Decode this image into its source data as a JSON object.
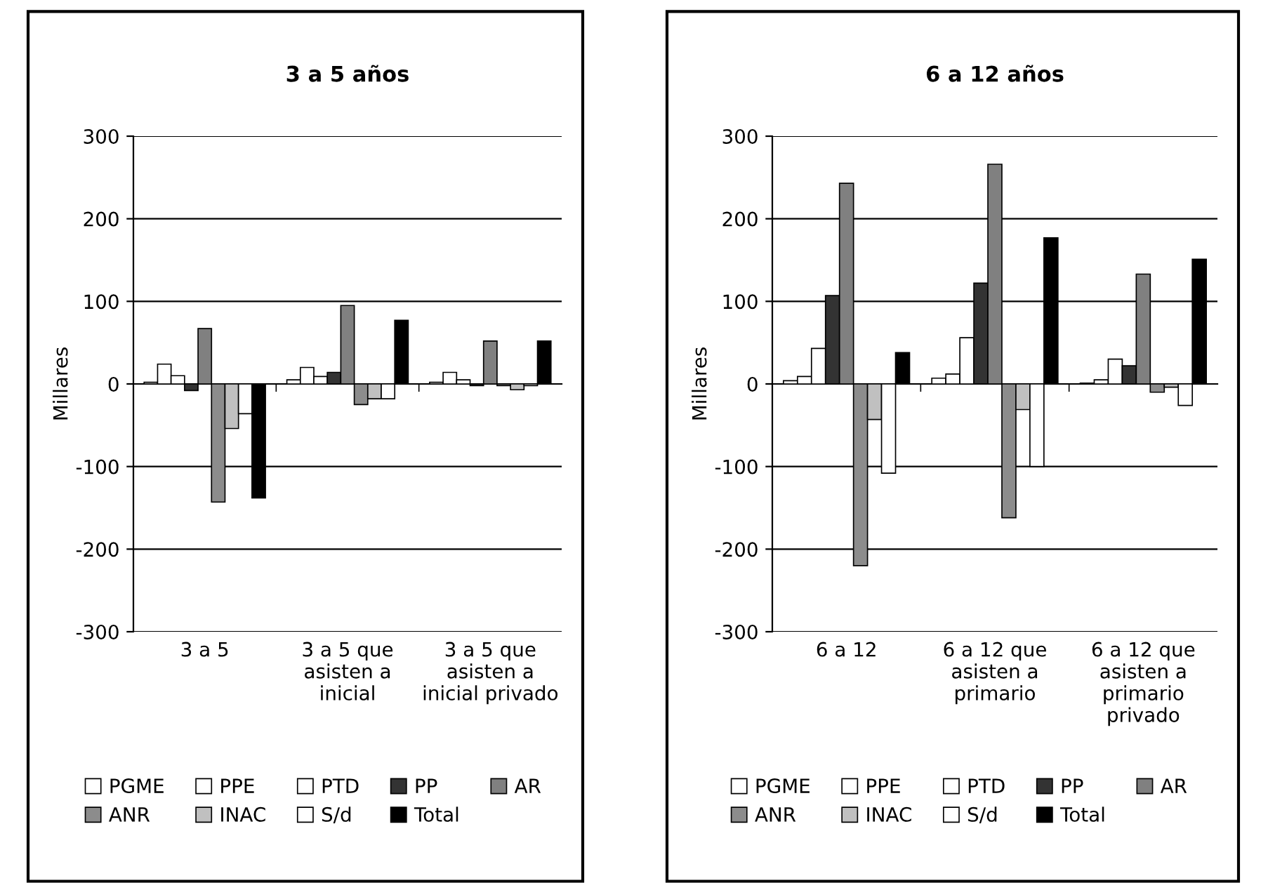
{
  "chart_data": [
    {
      "type": "bar",
      "title": "3 a 5 años",
      "ylabel": "Millares",
      "categories": [
        "3 a 5",
        "3 a 5 que\nasisten a\ninicial",
        "3 a 5 que\nasisten a\ninicial privado"
      ],
      "ylim": [
        -300,
        300
      ],
      "yticks": [
        -300,
        -200,
        -100,
        0,
        100,
        200,
        300
      ],
      "grid": "y",
      "legend": "bottom",
      "series": [
        {
          "name": "PGME",
          "color": "#ffffff",
          "values": [
            2,
            5,
            2
          ]
        },
        {
          "name": "PPE",
          "color": "#ffffff",
          "values": [
            24,
            20,
            14
          ]
        },
        {
          "name": "PTD",
          "color": "#ffffff",
          "values": [
            10,
            9,
            5
          ]
        },
        {
          "name": "PP",
          "color": "#333333",
          "values": [
            -8,
            14,
            -2
          ]
        },
        {
          "name": "AR",
          "color": "#808080",
          "values": [
            67,
            95,
            52
          ]
        },
        {
          "name": "ANR",
          "color": "#8c8c8c",
          "values": [
            -143,
            -25,
            -2
          ]
        },
        {
          "name": "INAC",
          "color": "#c0c0c0",
          "values": [
            -54,
            -18,
            -7
          ]
        },
        {
          "name": "S/d",
          "color": "#ffffff",
          "values": [
            -36,
            -18,
            -2
          ]
        },
        {
          "name": "Total",
          "color": "#000000",
          "values": [
            -138,
            77,
            52
          ]
        }
      ]
    },
    {
      "type": "bar",
      "title": "6 a 12 años",
      "ylabel": "Millares",
      "categories": [
        "6 a 12",
        "6 a 12 que\nasisten a\nprimario",
        "6 a 12 que\nasisten a\nprimario\nprivado"
      ],
      "ylim": [
        -300,
        300
      ],
      "yticks": [
        -300,
        -200,
        -100,
        0,
        100,
        200,
        300
      ],
      "grid": "y",
      "legend": "bottom",
      "series": [
        {
          "name": "PGME",
          "color": "#ffffff",
          "values": [
            4,
            7,
            1
          ]
        },
        {
          "name": "PPE",
          "color": "#ffffff",
          "values": [
            9,
            12,
            5
          ]
        },
        {
          "name": "PTD",
          "color": "#ffffff",
          "values": [
            43,
            56,
            30
          ]
        },
        {
          "name": "PP",
          "color": "#333333",
          "values": [
            107,
            122,
            22
          ]
        },
        {
          "name": "AR",
          "color": "#808080",
          "values": [
            243,
            266,
            133
          ]
        },
        {
          "name": "ANR",
          "color": "#8c8c8c",
          "values": [
            -220,
            -162,
            -10
          ]
        },
        {
          "name": "INAC",
          "color": "#c0c0c0",
          "values": [
            -43,
            -31,
            -4
          ]
        },
        {
          "name": "S/d",
          "color": "#ffffff",
          "values": [
            -108,
            -100,
            -26
          ]
        },
        {
          "name": "Total",
          "color": "#000000",
          "values": [
            38,
            177,
            151
          ]
        }
      ]
    }
  ]
}
